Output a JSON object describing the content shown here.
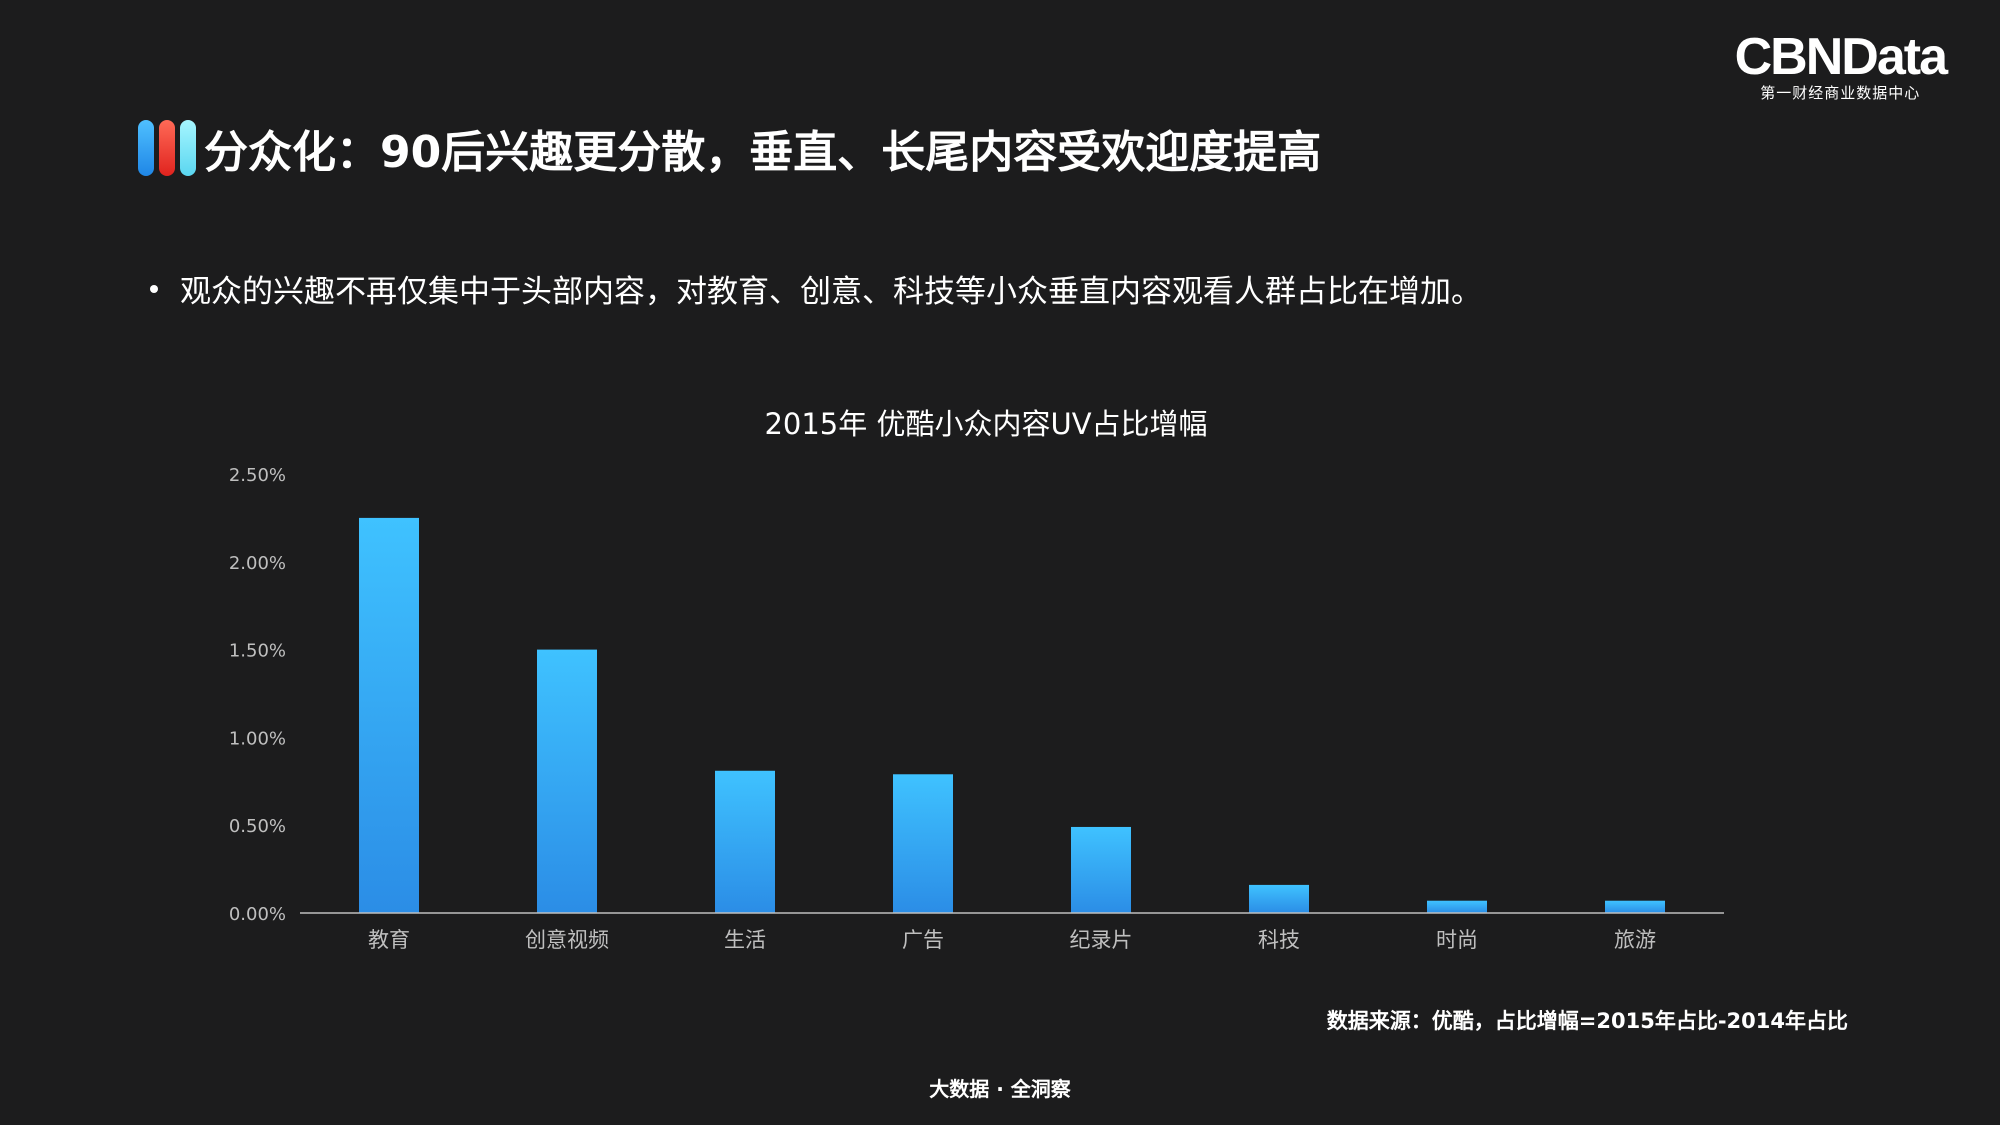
{
  "logo": {
    "wordmark": "CBNData",
    "subtitle": "第一财经商业数据中心"
  },
  "header": {
    "title": "分众化：90后兴趣更分散，垂直、长尾内容受欢迎度提高"
  },
  "bullet": {
    "text": "观众的兴趣不再仅集中于头部内容，对教育、创意、科技等小众垂直内容观看人群占比在增加。"
  },
  "colors": {
    "bar_top": "#3fc2ff",
    "bar_bottom": "#2b8de6",
    "pill_blue": "#2b9cf2",
    "pill_red": "#f0392b",
    "pill_cyan": "#7de8f8",
    "axis": "#bfbfbf"
  },
  "chart_data": {
    "type": "bar",
    "title": "2015年 优酷小众内容UV占比增幅",
    "categories": [
      "教育",
      "创意视频",
      "生活",
      "广告",
      "纪录片",
      "科技",
      "时尚",
      "旅游"
    ],
    "values": [
      2.25,
      1.5,
      0.81,
      0.79,
      0.49,
      0.16,
      0.07,
      0.07
    ],
    "unit": "%",
    "ylim": [
      0,
      2.5
    ],
    "yticks": [
      "0.00%",
      "0.50%",
      "1.00%",
      "1.50%",
      "2.00%",
      "2.50%"
    ],
    "xlabel": "",
    "ylabel": "",
    "grid": false,
    "legend": "none"
  },
  "source_note": "数据来源：优酷，占比增幅=2015年占比-2014年占比",
  "footer": "大数据 · 全洞察"
}
